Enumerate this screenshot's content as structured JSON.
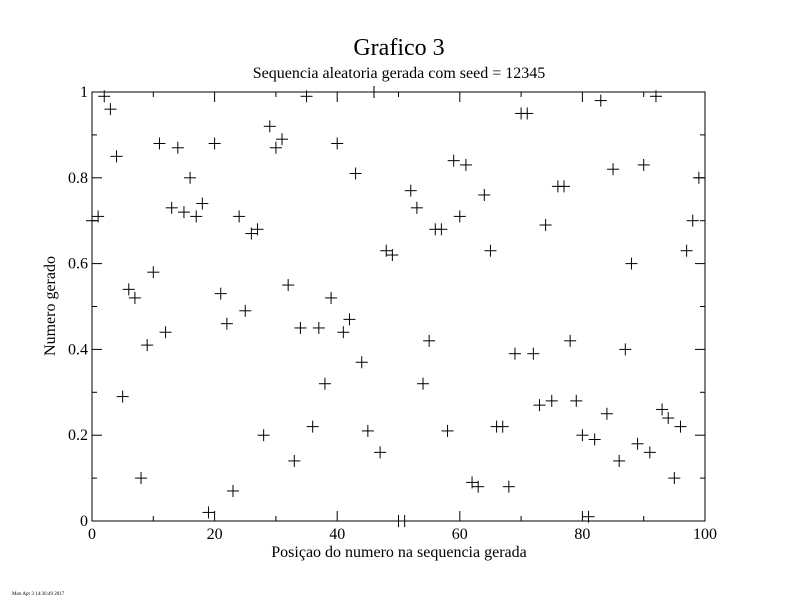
{
  "chart_data": {
    "type": "scatter",
    "title": "Grafico 3",
    "subtitle": "Sequencia aleatoria gerada com seed = 12345",
    "xlabel": "Posiçao do numero na sequencia gerada",
    "ylabel": "Numero gerado",
    "xlim": [
      0,
      100
    ],
    "ylim": [
      0,
      1
    ],
    "x_ticks": [
      0,
      20,
      40,
      60,
      80,
      100
    ],
    "x_tick_labels": [
      "0",
      "20",
      "40",
      "60",
      "80",
      "100"
    ],
    "y_ticks": [
      0,
      0.2,
      0.4,
      0.6,
      0.8,
      1
    ],
    "y_tick_labels": [
      "0",
      "0.2",
      "0.4",
      "0.6",
      "0.8",
      "1"
    ],
    "grid": false,
    "marker": "plus",
    "x": [
      0,
      1,
      2,
      3,
      4,
      5,
      6,
      7,
      8,
      9,
      10,
      11,
      12,
      13,
      14,
      15,
      16,
      17,
      18,
      19,
      20,
      21,
      22,
      23,
      24,
      25,
      26,
      27,
      28,
      29,
      30,
      31,
      32,
      33,
      34,
      35,
      36,
      37,
      38,
      39,
      40,
      41,
      42,
      43,
      44,
      45,
      46,
      47,
      48,
      49,
      50,
      51,
      52,
      53,
      54,
      55,
      56,
      57,
      58,
      59,
      60,
      61,
      62,
      63,
      64,
      65,
      66,
      67,
      68,
      69,
      70,
      71,
      72,
      73,
      74,
      75,
      76,
      77,
      78,
      79,
      80,
      81,
      82,
      83,
      84,
      85,
      86,
      87,
      88,
      89,
      90,
      91,
      92,
      93,
      94,
      95,
      96,
      97,
      98,
      99
    ],
    "y": [
      0.7,
      0.71,
      0.99,
      0.96,
      0.85,
      0.29,
      0.54,
      0.52,
      0.1,
      0.41,
      0.58,
      0.88,
      0.44,
      0.73,
      0.87,
      0.72,
      0.8,
      0.71,
      0.74,
      0.02,
      0.88,
      0.53,
      0.46,
      0.07,
      0.71,
      0.49,
      0.67,
      0.68,
      0.2,
      0.92,
      0.87,
      0.89,
      0.55,
      0.14,
      0.45,
      0.99,
      0.22,
      0.45,
      0.32,
      0.52,
      0.88,
      0.44,
      0.47,
      0.81,
      0.37,
      0.21,
      1.0,
      0.16,
      0.63,
      0.62,
      0.0,
      0.0,
      0.77,
      0.73,
      0.32,
      0.42,
      0.68,
      0.68,
      0.21,
      0.84,
      0.71,
      0.83,
      0.09,
      0.08,
      0.76,
      0.63,
      0.22,
      0.22,
      0.08,
      0.39,
      0.95,
      0.95,
      0.39,
      0.27,
      0.69,
      0.28,
      0.78,
      0.78,
      0.42,
      0.28,
      0.2,
      0.01,
      0.19,
      0.98,
      0.25,
      0.82,
      0.14,
      0.4,
      0.6,
      0.18,
      0.83,
      0.16,
      0.99,
      0.26,
      0.24,
      0.1,
      0.22,
      0.63,
      0.7,
      0.8
    ]
  },
  "footer": {
    "timestamp": "Mon Apr 3 14:36:49 2017"
  }
}
